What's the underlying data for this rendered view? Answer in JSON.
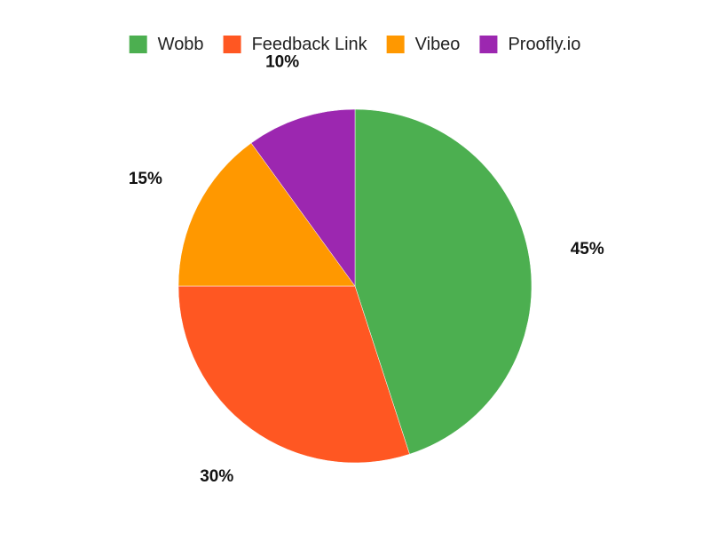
{
  "chart_data": {
    "type": "pie",
    "title": "",
    "legend_position": "top-center",
    "categories": [
      "Wobb",
      "Feedback Link",
      "Vibeo",
      "Proofly.io"
    ],
    "values": [
      45,
      30,
      15,
      10
    ],
    "labels": [
      "45%",
      "30%",
      "15%",
      "10%"
    ],
    "colors": [
      "#4caf50",
      "#ff5722",
      "#ff9800",
      "#9c27b0"
    ]
  }
}
